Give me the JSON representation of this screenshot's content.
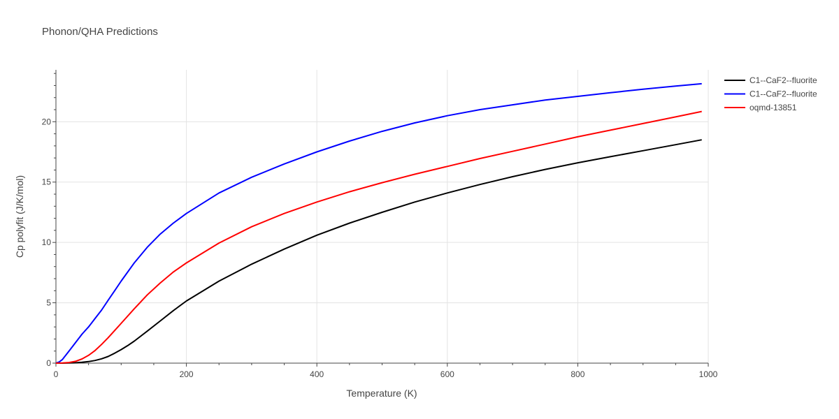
{
  "chart_data": {
    "type": "line",
    "title": "Phonon/QHA Predictions",
    "xlabel": "Temperature (K)",
    "ylabel": "Cp polyfit (J/K/mol)",
    "xlim": [
      0,
      1000
    ],
    "ylim": [
      0,
      24.3
    ],
    "xticks": [
      0,
      200,
      400,
      600,
      800,
      1000
    ],
    "yticks": [
      0,
      5,
      10,
      15,
      20
    ],
    "grid": true,
    "legend_position": "top-right",
    "series": [
      {
        "name": "C1--CaF2--fluorite",
        "color": "#000000",
        "x": [
          0,
          10,
          20,
          30,
          40,
          50,
          60,
          70,
          80,
          90,
          100,
          110,
          120,
          140,
          160,
          180,
          200,
          250,
          300,
          350,
          400,
          450,
          500,
          550,
          600,
          650,
          700,
          750,
          800,
          850,
          900,
          950,
          990
        ],
        "y": [
          0,
          0.001,
          0.01,
          0.03,
          0.07,
          0.13,
          0.22,
          0.36,
          0.55,
          0.82,
          1.12,
          1.45,
          1.82,
          2.65,
          3.5,
          4.35,
          5.15,
          6.8,
          8.2,
          9.45,
          10.6,
          11.6,
          12.5,
          13.35,
          14.1,
          14.8,
          15.45,
          16.05,
          16.6,
          17.1,
          17.6,
          18.1,
          18.5
        ]
      },
      {
        "name": "C1--CaF2--fluorite",
        "color": "#0000ff",
        "x": [
          0,
          5,
          10,
          20,
          30,
          40,
          50,
          60,
          70,
          80,
          90,
          100,
          120,
          140,
          160,
          180,
          200,
          250,
          300,
          350,
          400,
          450,
          500,
          550,
          600,
          650,
          700,
          750,
          800,
          850,
          900,
          950,
          990
        ],
        "y": [
          0,
          0.1,
          0.3,
          1.0,
          1.7,
          2.4,
          3.0,
          3.7,
          4.4,
          5.2,
          6.0,
          6.8,
          8.3,
          9.6,
          10.7,
          11.6,
          12.4,
          14.1,
          15.4,
          16.5,
          17.5,
          18.4,
          19.2,
          19.9,
          20.5,
          21.0,
          21.4,
          21.8,
          22.1,
          22.4,
          22.7,
          22.95,
          23.15
        ]
      },
      {
        "name": "oqmd-13851",
        "color": "#ff0000",
        "x": [
          0,
          10,
          20,
          30,
          40,
          50,
          60,
          70,
          80,
          90,
          100,
          120,
          140,
          160,
          180,
          200,
          250,
          300,
          350,
          400,
          450,
          500,
          550,
          600,
          650,
          700,
          750,
          800,
          850,
          900,
          950,
          990
        ],
        "y": [
          0,
          0.01,
          0.05,
          0.15,
          0.35,
          0.65,
          1.05,
          1.55,
          2.1,
          2.7,
          3.3,
          4.5,
          5.65,
          6.65,
          7.55,
          8.3,
          9.95,
          11.3,
          12.4,
          13.35,
          14.2,
          14.95,
          15.65,
          16.3,
          16.95,
          17.55,
          18.15,
          18.75,
          19.3,
          19.85,
          20.4,
          20.85
        ]
      }
    ]
  }
}
